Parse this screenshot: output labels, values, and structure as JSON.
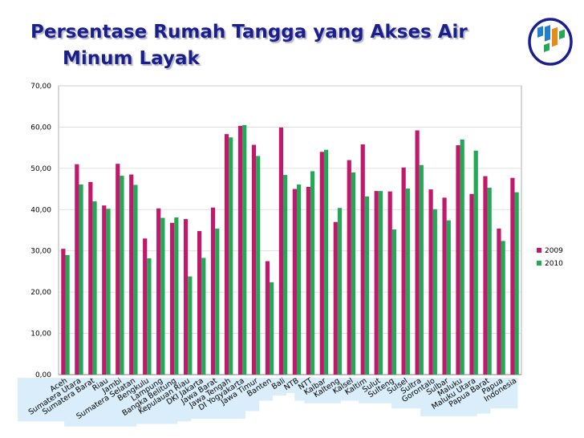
{
  "slide": {
    "title_line1": "Persentase Rumah Tangga yang  Akses Air",
    "title_line2": "Minum Layak"
  },
  "colors": {
    "series_2009": "#c2186b",
    "series_2010": "#23a856",
    "label_strip": "#d9eefa",
    "title": "#1a1f8c",
    "gridline": "#d8d8d8"
  },
  "chart_data": {
    "type": "bar",
    "title": "",
    "xlabel": "",
    "ylabel": "",
    "ylim": [
      0,
      70
    ],
    "yticks": [
      "0,00",
      "10,00",
      "20,00",
      "30,00",
      "40,00",
      "50,00",
      "60,00",
      "70,00"
    ],
    "grid": true,
    "legend": "right",
    "categories": [
      "Aceh",
      "Sumatera Utara",
      "Sumatera Barat",
      "Riau",
      "Jambi",
      "Sumatera Selatan",
      "Bengkulu",
      "Lampung",
      "Bangka Belitung",
      "Kepulauan Riau",
      "DKI Jakarta",
      "Jawa Barat",
      "Jawa Tengah",
      "DI Yogyakarta",
      "Jawa Timur",
      "Banten",
      "Bali",
      "NTB",
      "NTT",
      "Kalbar",
      "Kalteng",
      "Kalsel",
      "Kaltim",
      "Sulut",
      "Sulteng",
      "Sulsel",
      "Sultra",
      "Gorontalo",
      "Sulbar",
      "Maluku",
      "Maluku Utara",
      "Papua Barat",
      "Papua",
      "Indonesia"
    ],
    "series": [
      {
        "name": "2009",
        "values": [
          30.5,
          51.0,
          46.7,
          41.0,
          51.1,
          48.5,
          33.0,
          40.3,
          36.8,
          37.7,
          34.8,
          40.5,
          58.3,
          60.3,
          55.7,
          27.5,
          59.9,
          45.0,
          45.5,
          54.0,
          37.0,
          52.0,
          55.8,
          44.5,
          44.4,
          50.2,
          59.2,
          44.9,
          42.9,
          55.6,
          43.8,
          48.1,
          35.4,
          47.7
        ]
      },
      {
        "name": "2010",
        "values": [
          29.0,
          46.1,
          42.0,
          40.2,
          48.2,
          46.0,
          28.2,
          38.0,
          38.1,
          23.8,
          28.3,
          35.4,
          57.5,
          60.5,
          53.0,
          22.4,
          48.4,
          46.1,
          49.3,
          54.5,
          40.4,
          49.0,
          43.2,
          44.5,
          35.2,
          45.1,
          50.8,
          40.1,
          37.4,
          57.0,
          54.3,
          45.3,
          32.4,
          44.2
        ]
      }
    ]
  }
}
